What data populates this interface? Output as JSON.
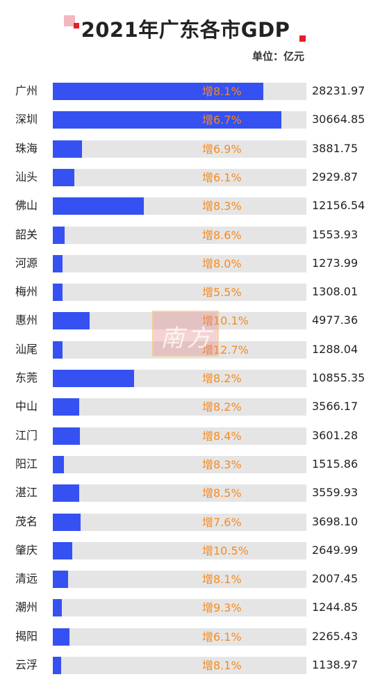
{
  "title": "2021年广东各市GDP",
  "unit": "单位：亿元",
  "watermark_text": "南方",
  "colors": {
    "bar": "#3551f2",
    "track": "#e5e5e5",
    "growth": "#f58a1f",
    "accent": "#e0202a"
  },
  "chart_data": {
    "type": "bar",
    "orientation": "horizontal",
    "title": "2021年广东各市GDP",
    "unit": "单位：亿元",
    "xlim": [
      0,
      34000
    ],
    "categories": [
      "广州",
      "深圳",
      "珠海",
      "汕头",
      "佛山",
      "韶关",
      "河源",
      "梅州",
      "惠州",
      "汕尾",
      "东莞",
      "中山",
      "江门",
      "阳江",
      "湛江",
      "茂名",
      "肇庆",
      "清远",
      "潮州",
      "揭阳",
      "云浮"
    ],
    "values": [
      28231.97,
      30664.85,
      3881.75,
      2929.87,
      12156.54,
      1553.93,
      1273.99,
      1308.01,
      4977.36,
      1288.04,
      10855.35,
      3566.17,
      3601.28,
      1515.86,
      3559.93,
      3698.1,
      2649.99,
      2007.45,
      1244.85,
      2265.43,
      1138.97
    ],
    "value_labels": [
      "28231.97",
      "30664.85",
      "3881.75",
      "2929.87",
      "12156.54",
      "1553.93",
      "1273.99",
      "1308.01",
      "4977.36",
      "1288.04",
      "10855.35",
      "3566.17",
      "3601.28",
      "1515.86",
      "3559.93",
      "3698.10",
      "2649.99",
      "2007.45",
      "1244.85",
      "2265.43",
      "1138.97"
    ],
    "growth_labels": [
      "增8.1%",
      "增6.7%",
      "增6.9%",
      "增6.1%",
      "增8.3%",
      "增8.6%",
      "增8.0%",
      "增5.5%",
      "增10.1%",
      "增12.7%",
      "增8.2%",
      "增8.2%",
      "增8.4%",
      "增8.3%",
      "增8.5%",
      "增7.6%",
      "增10.5%",
      "增8.1%",
      "增9.3%",
      "增6.1%",
      "增8.1%"
    ],
    "grid": false,
    "legend": "none"
  }
}
